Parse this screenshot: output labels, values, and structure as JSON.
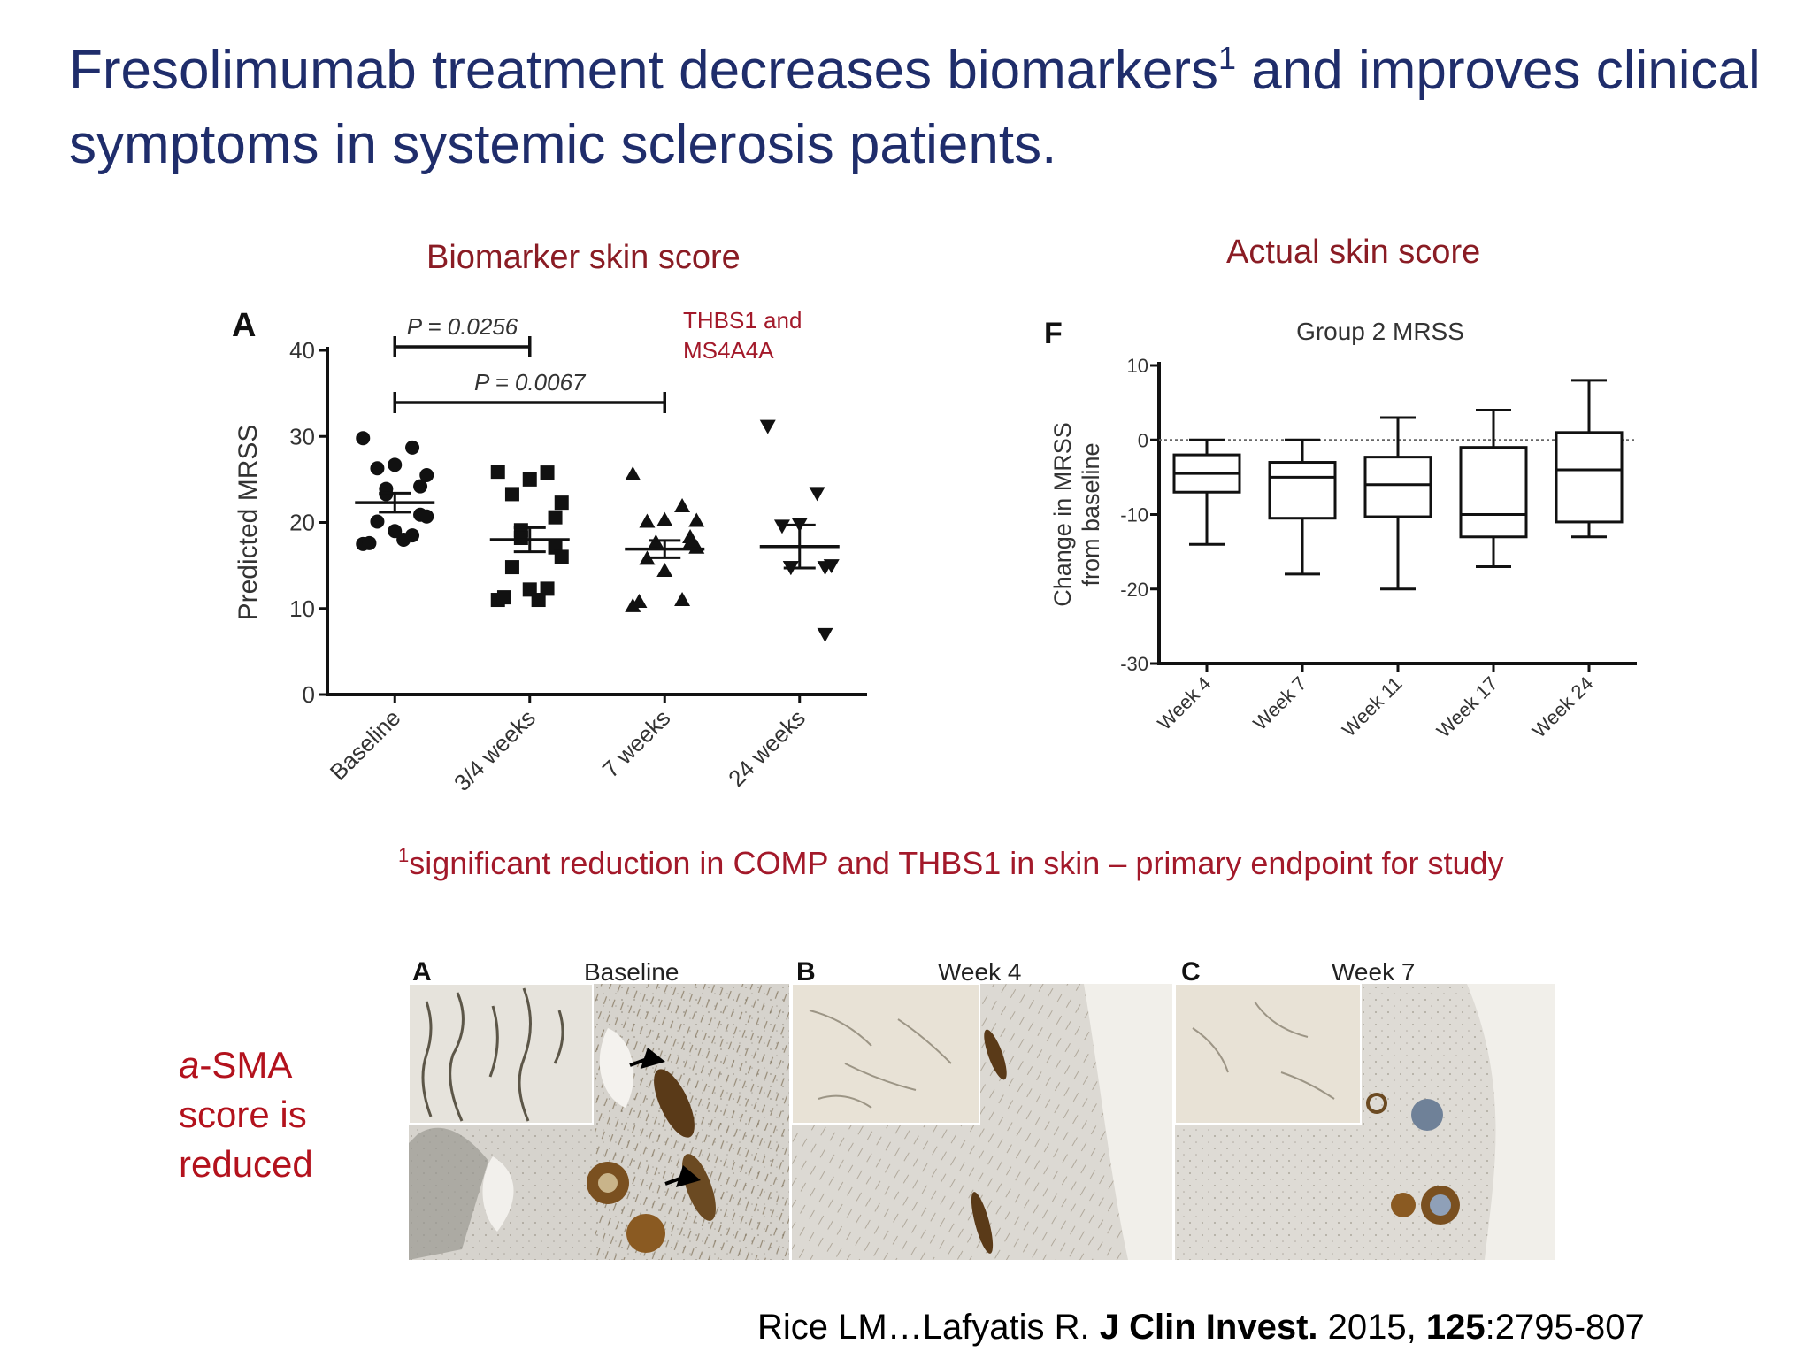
{
  "slide": {
    "title_part1": "Fresolimumab treatment decreases biomarkers",
    "title_sup": "1",
    "title_part2": " and improves clinical symptoms in systemic sclerosis patients.",
    "left_section_title": "Biomarker skin score",
    "right_section_title": "Actual skin score",
    "gene_note_line1": "THBS1 and",
    "gene_note_line2": "MS4A4A",
    "footnote_sup": "1",
    "footnote_text": "significant reduction in COMP and THBS1 in skin – primary endpoint for study",
    "sma_prefix": "a",
    "sma_line1_rest": "-SMA",
    "sma_line2": "score is",
    "sma_line3": "reduced",
    "citation_authors": "Rice LM…Lafyatis R. ",
    "citation_journal": "J Clin Invest.",
    "citation_year": " 2015, ",
    "citation_volume": "125",
    "citation_pages": ":2795-807"
  },
  "chart_data": [
    {
      "type": "scatter",
      "panel_letter": "A",
      "title": "",
      "xlabel": "",
      "ylabel": "Predicted MRSS",
      "ylim": [
        0,
        40
      ],
      "yticks": [
        0,
        10,
        20,
        30,
        40
      ],
      "categories": [
        "Baseline",
        "3/4 weeks",
        "7 weeks",
        "24 weeks"
      ],
      "marker_shapes": [
        "circle",
        "square",
        "triangle-up",
        "triangle-down"
      ],
      "points": [
        [
          29.8,
          28.7,
          26.7,
          26.3,
          25.5,
          24.2,
          23.9,
          23.3,
          20.9,
          20.7,
          20.1,
          19.0,
          18.5,
          17.5,
          17.6,
          18.0
        ],
        [
          25.9,
          25.8,
          25.0,
          23.3,
          22.3,
          20.6,
          19.1,
          18.2,
          17.1,
          16.0,
          14.8,
          12.2,
          12.3,
          11.0,
          11.3,
          11.0
        ],
        [
          25.6,
          21.9,
          20.3,
          20.1,
          20.2,
          18.3,
          17.6,
          17.7,
          17.6,
          17.1,
          15.8,
          14.4,
          11.0,
          10.3,
          10.8
        ],
        [
          31.2,
          23.4,
          19.8,
          19.6,
          15.0,
          14.8,
          14.8,
          14.8,
          7.0
        ]
      ],
      "means": [
        22.3,
        18.0,
        16.9,
        17.2
      ],
      "sem_upper": [
        23.4,
        19.4,
        17.9,
        19.7
      ],
      "sem_lower": [
        21.2,
        16.6,
        15.9,
        14.7
      ],
      "comparisons": [
        {
          "from": "Baseline",
          "to": "3/4 weeks",
          "label": "P = 0.0256"
        },
        {
          "from": "Baseline",
          "to": "7 weeks",
          "label": "P = 0.0067"
        }
      ],
      "color": "#111111"
    },
    {
      "type": "box",
      "panel_letter": "F",
      "title": "Group 2 MRSS",
      "xlabel": "",
      "ylabel_line1": "Change in MRSS",
      "ylabel_line2": "from baseline",
      "ylim": [
        -30,
        10
      ],
      "yticks": [
        -30,
        -20,
        -10,
        0,
        10
      ],
      "reference_line": 0,
      "categories": [
        "Week 4",
        "Week 7",
        "Week 11",
        "Week 17",
        "Week 24"
      ],
      "boxes": [
        {
          "min": -14,
          "q1": -7,
          "median": -4.5,
          "q3": -2,
          "max": 0
        },
        {
          "min": -18,
          "q1": -10.5,
          "median": -5,
          "q3": -3,
          "max": 0
        },
        {
          "min": -20,
          "q1": -10.3,
          "median": -6,
          "q3": -2.3,
          "max": 3
        },
        {
          "min": -17,
          "q1": -13,
          "median": -10,
          "q3": -1,
          "max": 4
        },
        {
          "min": -13,
          "q1": -11,
          "median": -4,
          "q3": 1,
          "max": 8
        }
      ],
      "color": "#111111"
    }
  ],
  "histology": {
    "panels": [
      {
        "letter": "A",
        "label": "Baseline"
      },
      {
        "letter": "B",
        "label": "Week 4"
      },
      {
        "letter": "C",
        "label": "Week 7"
      }
    ],
    "colors": {
      "tissue": "#d8d6d2",
      "stain_dark": "#5a3a18",
      "vessel": "#7a5020",
      "lumen": "#f4f2ee",
      "inset_bg": "#e8e2d6"
    }
  }
}
